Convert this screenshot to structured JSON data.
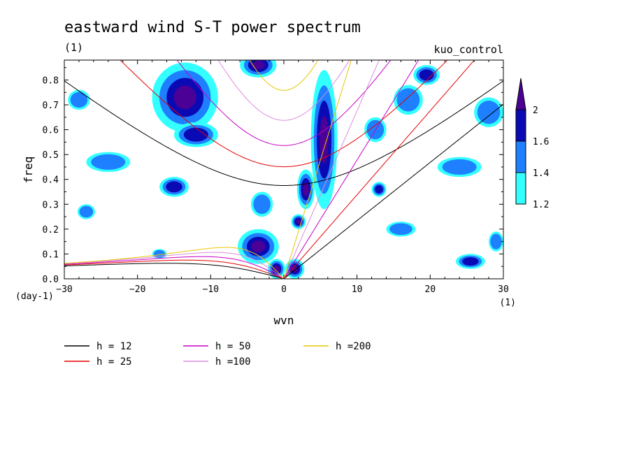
{
  "chart_data": {
    "type": "heatmap",
    "title": "eastward wind S-T power spectrum",
    "subtitle": "(1)",
    "experiment": "kuo_control",
    "xlabel": "wvn",
    "ylabel": "freq",
    "x_unit_label": "(1)",
    "y_unit_label": "(day-1)",
    "xlim": [
      -30,
      30
    ],
    "ylim": [
      0,
      0.88
    ],
    "x_ticks": [
      -30,
      -20,
      -10,
      0,
      10,
      20,
      30
    ],
    "y_ticks": [
      0.0,
      0.1,
      0.2,
      0.3,
      0.4,
      0.5,
      0.6,
      0.7,
      0.8
    ],
    "y_tick_labels": [
      "0.0",
      "0.1",
      "0.2",
      "0.3",
      "0.4",
      "0.5",
      "0.6",
      "0.7",
      "0.8"
    ],
    "colorbar": {
      "levels": [
        1.2,
        1.4,
        1.6,
        2
      ],
      "labels": [
        "1.2",
        "1.4",
        "1.6",
        "2"
      ],
      "colors": [
        "#33ffff",
        "#1e7fff",
        "#0a0ab4",
        "#4b0096"
      ]
    },
    "series": [
      {
        "name": "h = 12",
        "color": "#000000"
      },
      {
        "name": "h = 25",
        "color": "#e60000"
      },
      {
        "name": "h = 50",
        "color": "#c800c8"
      },
      {
        "name": "h =100",
        "color": "#dc8cdc"
      },
      {
        "name": "h =200",
        "color": "#e6c800"
      }
    ],
    "blobs": [
      {
        "x": -13.5,
        "y": 0.73,
        "rx": 4.5,
        "ry": 0.14,
        "level": 3
      },
      {
        "x": -12,
        "y": 0.58,
        "rx": 3,
        "ry": 0.05,
        "level": 2
      },
      {
        "x": -3.5,
        "y": 0.86,
        "rx": 2.5,
        "ry": 0.05,
        "level": 3
      },
      {
        "x": 5.5,
        "y": 0.56,
        "rx": 1.8,
        "ry": 0.28,
        "level": 3
      },
      {
        "x": 3,
        "y": 0.36,
        "rx": 1.2,
        "ry": 0.08,
        "level": 3
      },
      {
        "x": 2,
        "y": 0.23,
        "rx": 1,
        "ry": 0.03,
        "level": 3
      },
      {
        "x": -3.5,
        "y": 0.13,
        "rx": 2.8,
        "ry": 0.07,
        "level": 3
      },
      {
        "x": -1,
        "y": 0.04,
        "rx": 1.2,
        "ry": 0.04,
        "level": 3
      },
      {
        "x": 1.5,
        "y": 0.04,
        "rx": 1.3,
        "ry": 0.04,
        "level": 3
      },
      {
        "x": -3,
        "y": 0.3,
        "rx": 1.5,
        "ry": 0.05,
        "level": 1
      },
      {
        "x": -15,
        "y": 0.37,
        "rx": 2,
        "ry": 0.04,
        "level": 2
      },
      {
        "x": -24,
        "y": 0.47,
        "rx": 3,
        "ry": 0.04,
        "level": 1
      },
      {
        "x": 17,
        "y": 0.72,
        "rx": 2,
        "ry": 0.06,
        "level": 1
      },
      {
        "x": 19.5,
        "y": 0.82,
        "rx": 1.8,
        "ry": 0.04,
        "level": 2
      },
      {
        "x": 28,
        "y": 0.67,
        "rx": 2,
        "ry": 0.06,
        "level": 1
      },
      {
        "x": 24,
        "y": 0.45,
        "rx": 3,
        "ry": 0.04,
        "level": 1
      },
      {
        "x": 13,
        "y": 0.36,
        "rx": 1,
        "ry": 0.03,
        "level": 2
      },
      {
        "x": 16,
        "y": 0.2,
        "rx": 2,
        "ry": 0.03,
        "level": 1
      },
      {
        "x": 25.5,
        "y": 0.07,
        "rx": 2,
        "ry": 0.03,
        "level": 2
      },
      {
        "x": -28,
        "y": 0.72,
        "rx": 1.5,
        "ry": 0.04,
        "level": 1
      },
      {
        "x": -17,
        "y": 0.1,
        "rx": 1,
        "ry": 0.02,
        "level": 1
      },
      {
        "x": 12.5,
        "y": 0.6,
        "rx": 1.5,
        "ry": 0.05,
        "level": 1
      },
      {
        "x": 29,
        "y": 0.15,
        "rx": 1,
        "ry": 0.04,
        "level": 1
      },
      {
        "x": -27,
        "y": 0.27,
        "rx": 1.2,
        "ry": 0.03,
        "level": 1
      }
    ]
  }
}
